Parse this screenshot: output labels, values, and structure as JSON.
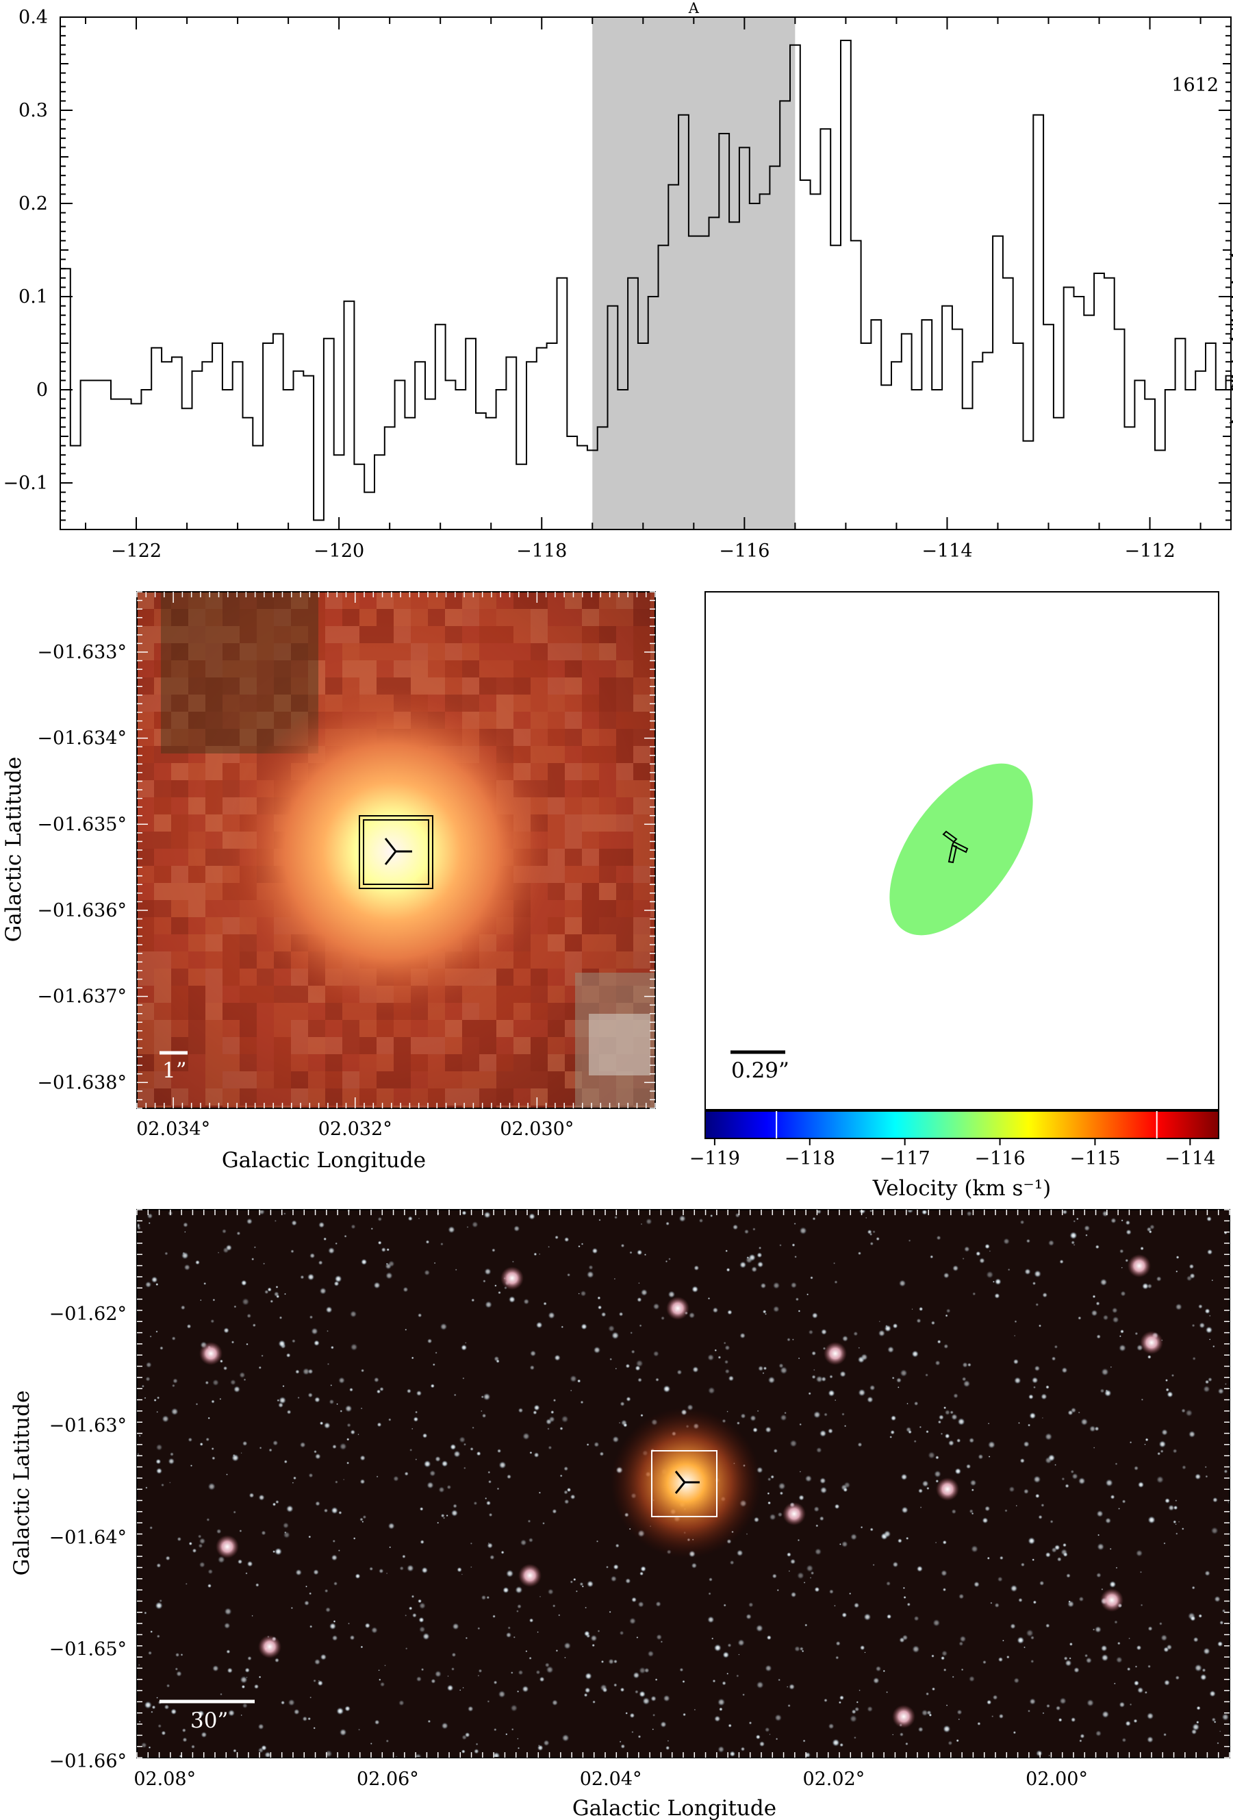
{
  "chart_data": [
    {
      "type": "line",
      "panel": "spectrum",
      "label_corner": "1612",
      "highlight_label": "A",
      "highlight_range": [
        -117.5,
        -115.5
      ],
      "highlight_color": "#c8c8c8",
      "xlim": [
        -122.75,
        -111.2
      ],
      "ylim": [
        -0.15,
        0.4
      ],
      "xticks": [
        -122,
        -120,
        -118,
        -116,
        -114,
        -112
      ],
      "xtick_labels": [
        "−122",
        "−120",
        "−118",
        "−116",
        "−114",
        "−112"
      ],
      "yticks": [
        -0.1,
        0,
        0.1,
        0.2,
        0.3,
        0.4
      ],
      "ytick_labels": [
        "−0.1",
        "0",
        "0.1",
        "0.2",
        "0.3",
        "0.4"
      ],
      "step": 0.1,
      "x_start": -122.75,
      "values": [
        0.13,
        -0.06,
        0.01,
        0.01,
        0.01,
        -0.01,
        -0.01,
        -0.015,
        0.0,
        0.045,
        0.03,
        0.035,
        -0.02,
        0.02,
        0.03,
        0.05,
        0.0,
        0.03,
        -0.03,
        -0.06,
        0.05,
        0.06,
        0.0,
        0.02,
        0.015,
        -0.14,
        0.055,
        -0.07,
        0.095,
        -0.08,
        -0.11,
        -0.07,
        -0.04,
        0.01,
        -0.03,
        0.03,
        -0.01,
        0.07,
        0.01,
        0.0,
        0.055,
        -0.025,
        -0.03,
        0.0,
        0.035,
        -0.08,
        0.03,
        0.045,
        0.05,
        0.12,
        -0.05,
        -0.06,
        -0.065,
        -0.04,
        0.09,
        0.0,
        0.12,
        0.05,
        0.1,
        0.155,
        0.22,
        0.295,
        0.165,
        0.165,
        0.185,
        0.275,
        0.18,
        0.26,
        0.2,
        0.21,
        0.24,
        0.31,
        0.37,
        0.225,
        0.21,
        0.28,
        0.155,
        0.375,
        0.16,
        0.05,
        0.075,
        0.005,
        0.03,
        0.06,
        0.0,
        0.075,
        0.0,
        0.09,
        0.065,
        -0.02,
        0.03,
        0.04,
        0.165,
        0.12,
        0.05,
        -0.055,
        0.295,
        0.07,
        -0.03,
        0.11,
        0.1,
        0.08,
        0.125,
        0.12,
        0.065,
        -0.04,
        0.01,
        -0.01,
        -0.065,
        0.0,
        0.055,
        0.0,
        0.02,
        0.05,
        0.0,
        0.015,
        0.01,
        0.0,
        0.015,
        0.0,
        0.115,
        0.145,
        0.085,
        0.075,
        0.03,
        0.07,
        0.055,
        -0.035,
        0.065,
        0.1,
        0.03
      ]
    },
    {
      "type": "heatmap",
      "panel": "zoom-image",
      "xlabel": "Galactic Longitude",
      "ylabel": "Galactic Latitude",
      "xlim": [
        2.0344,
        2.0287
      ],
      "ylim": [
        -1.6383,
        -1.6323
      ],
      "xticks": [
        2.034,
        2.032,
        2.03
      ],
      "xtick_labels": [
        "02.034°",
        "02.032°",
        "02.030°"
      ],
      "yticks": [
        -1.633,
        -1.634,
        -1.635,
        -1.636,
        -1.637,
        -1.638
      ],
      "ytick_labels": [
        "−01.633°",
        "−01.634°",
        "−01.635°",
        "−01.636°",
        "−01.637°",
        "−01.638°"
      ],
      "scale_bar_label": "1”"
    },
    {
      "type": "scatter",
      "panel": "velocity-map",
      "xlabel": "Velocity (km s⁻¹)",
      "colorbar_range": [
        -119.1,
        -113.7
      ],
      "colorbar_ticks": [
        -119,
        -118,
        -117,
        -116,
        -115,
        -114
      ],
      "colorbar_tick_labels": [
        "−119",
        "−118",
        "−117",
        "−116",
        "−115",
        "−114"
      ],
      "colorbar_markers": [
        -118.35,
        -114.35
      ],
      "ellipse_color": "#84f57a",
      "scale_bar_label": "0.29”"
    },
    {
      "type": "heatmap",
      "panel": "wide-image",
      "xlabel": "Galactic Longitude",
      "ylabel": "Galactic Latitude",
      "xlim": [
        2.0825,
        1.9845
      ],
      "ylim": [
        -1.6597,
        -1.6107
      ],
      "xticks": [
        2.08,
        2.06,
        2.04,
        2.02,
        2.0
      ],
      "xtick_labels": [
        "02.08°",
        "02.06°",
        "02.04°",
        "02.02°",
        "02.00°"
      ],
      "yticks": [
        -1.62,
        -1.63,
        -1.64,
        -1.65,
        -1.66
      ],
      "ytick_labels": [
        "−01.62°",
        "−01.63°",
        "−01.64°",
        "−01.65°",
        "−01.66°"
      ],
      "scale_bar_label": "30”"
    }
  ]
}
